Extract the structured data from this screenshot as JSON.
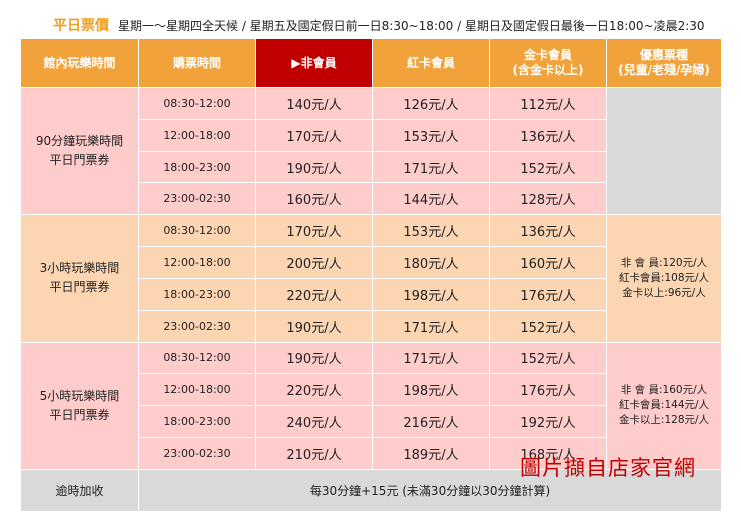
{
  "header": {
    "title": "平日票價",
    "subtitle": "星期一～星期四全天候 / 星期五及國定假日前一日8:30~18:00 / 星期日及國定假日最後一日18:00~凌晨2:30"
  },
  "columns": {
    "c1": "館內玩樂時間",
    "c2": "購票時間",
    "c3": "▶非會員",
    "c4": "紅卡會員",
    "c5_line1": "金卡會員",
    "c5_line2": "(含金卡以上)",
    "c6_line1": "優惠票種",
    "c6_line2": "(兒童/老殘/孕婦)"
  },
  "groups": [
    {
      "name_line1": "90分鐘玩樂時間",
      "name_line2": "平日門票券",
      "rows": [
        {
          "time": "08:30-12:00",
          "non": "140元/人",
          "red": "126元/人",
          "gold": "112元/人"
        },
        {
          "time": "12:00-18:00",
          "non": "170元/人",
          "red": "153元/人",
          "gold": "136元/人"
        },
        {
          "time": "18:00-23:00",
          "non": "190元/人",
          "red": "171元/人",
          "gold": "152元/人"
        },
        {
          "time": "23:00-02:30",
          "non": "160元/人",
          "red": "144元/人",
          "gold": "128元/人"
        }
      ],
      "discount": []
    },
    {
      "name_line1": "3小時玩樂時間",
      "name_line2": "平日門票券",
      "rows": [
        {
          "time": "08:30-12:00",
          "non": "170元/人",
          "red": "153元/人",
          "gold": "136元/人"
        },
        {
          "time": "12:00-18:00",
          "non": "200元/人",
          "red": "180元/人",
          "gold": "160元/人"
        },
        {
          "time": "18:00-23:00",
          "non": "220元/人",
          "red": "198元/人",
          "gold": "176元/人"
        },
        {
          "time": "23:00-02:30",
          "non": "190元/人",
          "red": "171元/人",
          "gold": "152元/人"
        }
      ],
      "discount": [
        "非 會 員:120元/人",
        "紅卡會員:108元/人",
        "金卡以上:96元/人"
      ]
    },
    {
      "name_line1": "5小時玩樂時間",
      "name_line2": "平日門票券",
      "rows": [
        {
          "time": "08:30-12:00",
          "non": "190元/人",
          "red": "171元/人",
          "gold": "152元/人"
        },
        {
          "time": "12:00-18:00",
          "non": "220元/人",
          "red": "198元/人",
          "gold": "176元/人"
        },
        {
          "time": "18:00-23:00",
          "non": "240元/人",
          "red": "216元/人",
          "gold": "192元/人"
        },
        {
          "time": "23:00-02:30",
          "non": "210元/人",
          "red": "189元/人",
          "gold": "168元/人"
        }
      ],
      "discount": [
        "非 會 員:160元/人",
        "紅卡會員:144元/人",
        "金卡以上:128元/人"
      ]
    }
  ],
  "overtime": {
    "label": "逾時加收",
    "text": "每30分鐘+15元 (未滿30分鐘以30分鐘計算)"
  },
  "watermark": "圖片擷自店家官網",
  "colors": {
    "header_orange": "#f2a23a",
    "highlight_red": "#c00000",
    "pink": "#ffcccc",
    "peach": "#fcd5b3",
    "gray": "#d9d9d9",
    "title_orange": "#f0a020"
  }
}
